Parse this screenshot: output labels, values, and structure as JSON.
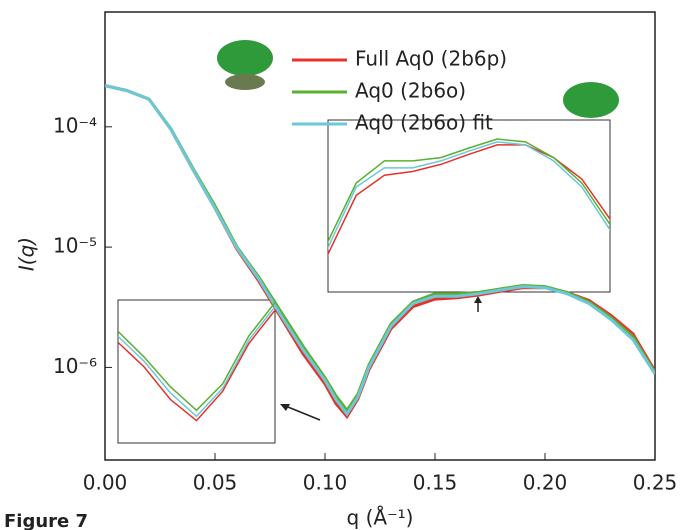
{
  "chart_data": {
    "type": "line",
    "log_y": true,
    "legend": "upper center",
    "grid": false,
    "caption": "Figure 7",
    "xlabel": "q (Å⁻¹)",
    "ylabel": "I(q)",
    "xlim": [
      0,
      0.25
    ],
    "xticks": [
      {
        "value": 0,
        "label": "0.00"
      },
      {
        "value": 0.05,
        "label": "0.05"
      },
      {
        "value": 0.1,
        "label": "0.10"
      },
      {
        "value": 0.15,
        "label": "0.15"
      },
      {
        "value": 0.2,
        "label": "0.20"
      },
      {
        "value": 0.25,
        "label": "0.25"
      }
    ],
    "ylim": [
      1.7e-07,
      0.0009
    ],
    "yticks": [
      {
        "value": 1e-06,
        "label": "10⁻⁶"
      },
      {
        "value": 1e-05,
        "label": "10⁻⁵"
      },
      {
        "value": 0.0001,
        "label": "10⁻⁴"
      }
    ],
    "x": [
      0,
      0.01,
      0.02,
      0.03,
      0.04,
      0.05,
      0.06,
      0.07,
      0.08,
      0.09,
      0.1,
      0.105,
      0.11,
      0.115,
      0.12,
      0.13,
      0.14,
      0.15,
      0.16,
      0.17,
      0.18,
      0.19,
      0.2,
      0.21,
      0.22,
      0.23,
      0.24,
      0.25
    ],
    "series": [
      {
        "name": "Full Aq0 (2b6p)",
        "color": "#e8312a",
        "values": [
          0.00022,
          0.0002,
          0.00017,
          9.5e-05,
          4.4e-05,
          2.1e-05,
          9.6e-06,
          5.2e-06,
          2.6e-06,
          1.3e-06,
          7.3e-07,
          5e-07,
          3.9e-07,
          5.5e-07,
          9.6e-07,
          2.1e-06,
          3.2e-06,
          3.7e-06,
          3.8e-06,
          4e-06,
          4.3e-06,
          4.6e-06,
          4.6e-06,
          4.2e-06,
          3.6e-06,
          2.7e-06,
          1.9e-06,
          9.3e-07
        ]
      },
      {
        "name": "Aq0 (2b6o)",
        "color": "#5ab030",
        "values": [
          0.00022,
          0.0002,
          0.00017,
          9.6e-05,
          4.5e-05,
          2.2e-05,
          1e-05,
          5.6e-06,
          2.9e-06,
          1.5e-06,
          8.2e-07,
          5.8e-07,
          4.4e-07,
          6e-07,
          1.05e-06,
          2.3e-06,
          3.5e-06,
          4.1e-06,
          4.1e-06,
          4.2e-06,
          4.5e-06,
          4.8e-06,
          4.7e-06,
          4.2e-06,
          3.5e-06,
          2.6e-06,
          1.8e-06,
          9e-07
        ]
      },
      {
        "name": "Aq0 (2b6o) fit",
        "color": "#6cc8d8",
        "values": [
          0.00022,
          0.0002,
          0.00017,
          9.5e-05,
          4.4e-05,
          2.1e-05,
          9.8e-06,
          5.4e-06,
          2.7e-06,
          1.4e-06,
          7.8e-07,
          5.4e-07,
          4.1e-07,
          5.7e-07,
          1e-06,
          2.2e-06,
          3.4e-06,
          3.9e-06,
          3.9e-06,
          4.1e-06,
          4.4e-06,
          4.7e-06,
          4.6e-06,
          4.1e-06,
          3.4e-06,
          2.5e-06,
          1.7e-06,
          8.8e-07
        ]
      }
    ]
  }
}
